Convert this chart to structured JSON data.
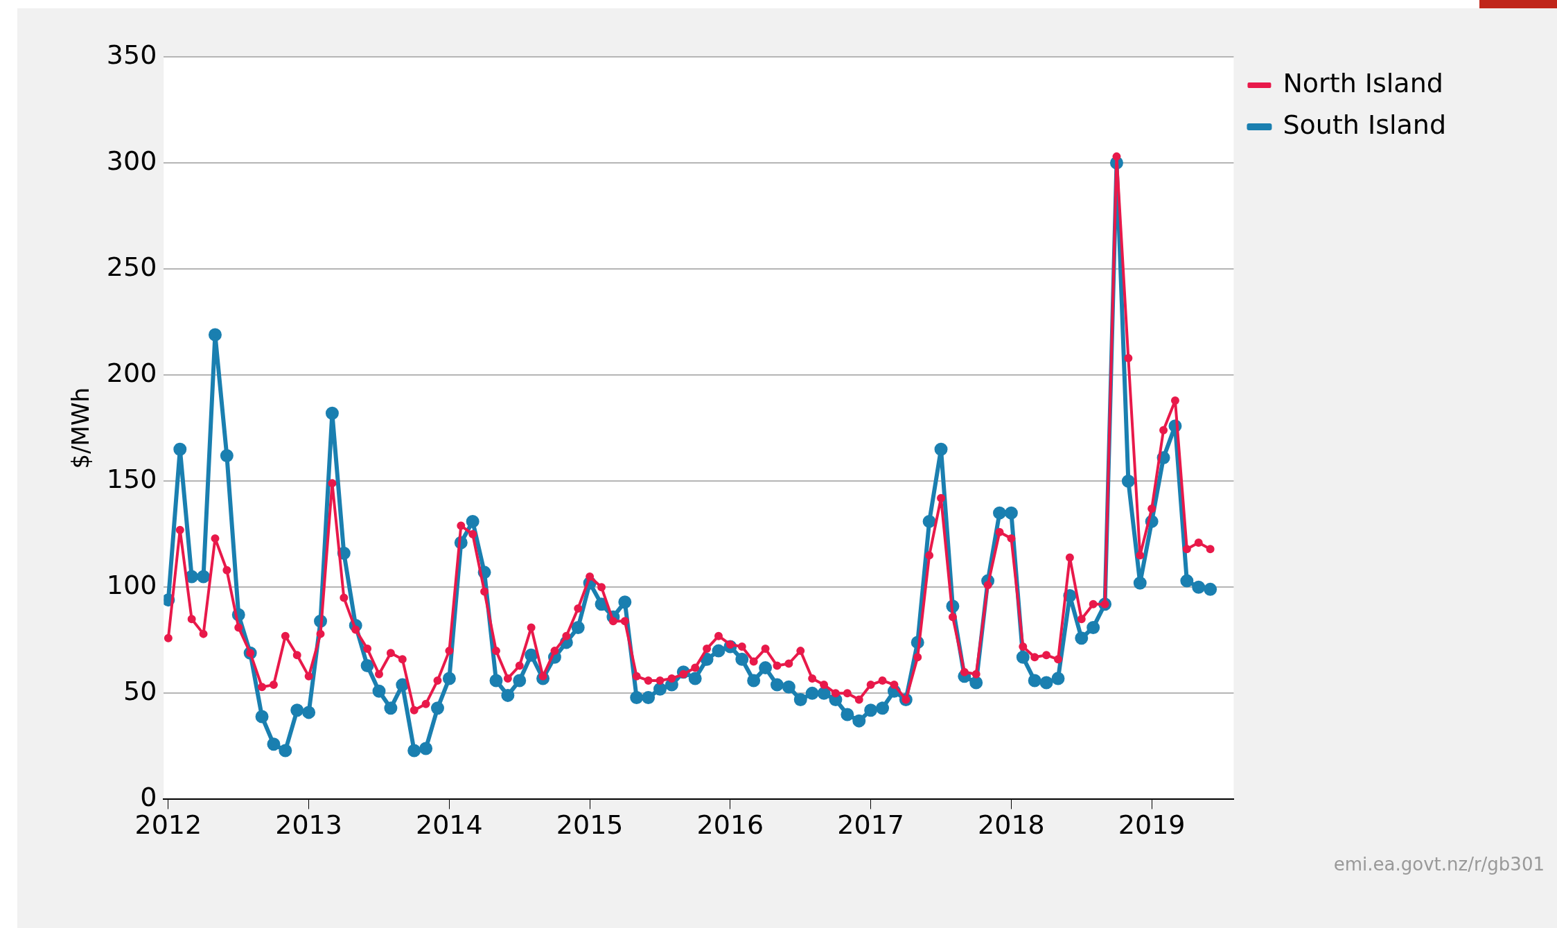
{
  "chart_data": {
    "type": "line",
    "ylabel": "$/MWh",
    "x": [
      "2012-01",
      "2012-02",
      "2012-03",
      "2012-04",
      "2012-05",
      "2012-06",
      "2012-07",
      "2012-08",
      "2012-09",
      "2012-10",
      "2012-11",
      "2012-12",
      "2013-01",
      "2013-02",
      "2013-03",
      "2013-04",
      "2013-05",
      "2013-06",
      "2013-07",
      "2013-08",
      "2013-09",
      "2013-10",
      "2013-11",
      "2013-12",
      "2014-01",
      "2014-02",
      "2014-03",
      "2014-04",
      "2014-05",
      "2014-06",
      "2014-07",
      "2014-08",
      "2014-09",
      "2014-10",
      "2014-11",
      "2014-12",
      "2015-01",
      "2015-02",
      "2015-03",
      "2015-04",
      "2015-05",
      "2015-06",
      "2015-07",
      "2015-08",
      "2015-09",
      "2015-10",
      "2015-11",
      "2015-12",
      "2016-01",
      "2016-02",
      "2016-03",
      "2016-04",
      "2016-05",
      "2016-06",
      "2016-07",
      "2016-08",
      "2016-09",
      "2016-10",
      "2016-11",
      "2016-12",
      "2017-01",
      "2017-02",
      "2017-03",
      "2017-04",
      "2017-05",
      "2017-06",
      "2017-07",
      "2017-08",
      "2017-09",
      "2017-10",
      "2017-11",
      "2017-12",
      "2018-01",
      "2018-02",
      "2018-03",
      "2018-04",
      "2018-05",
      "2018-06",
      "2018-07",
      "2018-08",
      "2018-09",
      "2018-10",
      "2018-11",
      "2018-12",
      "2019-01",
      "2019-02",
      "2019-03",
      "2019-04",
      "2019-05",
      "2019-06"
    ],
    "series": [
      {
        "name": "North Island",
        "color": "#e8194a",
        "values": [
          76,
          127,
          85,
          78,
          123,
          108,
          81,
          69,
          53,
          54,
          77,
          68,
          58,
          78,
          149,
          95,
          80,
          71,
          59,
          69,
          66,
          42,
          45,
          56,
          70,
          129,
          125,
          98,
          70,
          57,
          63,
          81,
          58,
          70,
          77,
          90,
          105,
          100,
          84,
          84,
          58,
          56,
          56,
          57,
          59,
          62,
          71,
          77,
          73,
          72,
          65,
          71,
          63,
          64,
          70,
          57,
          54,
          50,
          50,
          47,
          54,
          56,
          54,
          47,
          67,
          115,
          142,
          86,
          60,
          59,
          101,
          126,
          123,
          72,
          67,
          68,
          66,
          114,
          85,
          92,
          92,
          303,
          208,
          115,
          137,
          174,
          188,
          118,
          121,
          118
        ]
      },
      {
        "name": "South Island",
        "color": "#1a7fb0",
        "values": [
          94,
          165,
          105,
          105,
          219,
          162,
          87,
          69,
          39,
          26,
          23,
          42,
          41,
          84,
          182,
          116,
          82,
          63,
          51,
          43,
          54,
          23,
          24,
          43,
          57,
          121,
          131,
          107,
          56,
          49,
          56,
          68,
          57,
          67,
          74,
          81,
          102,
          92,
          86,
          93,
          48,
          48,
          52,
          54,
          60,
          57,
          66,
          70,
          72,
          66,
          56,
          62,
          54,
          53,
          47,
          50,
          50,
          47,
          40,
          37,
          42,
          43,
          51,
          47,
          74,
          131,
          165,
          91,
          58,
          55,
          103,
          135,
          135,
          67,
          56,
          55,
          57,
          96,
          76,
          81,
          92,
          300,
          150,
          102,
          131,
          161,
          176,
          103,
          100,
          99
        ]
      }
    ],
    "xlim": [
      "2011-12-20",
      "2019-08-01"
    ],
    "xticks": [
      "2012",
      "2013",
      "2014",
      "2015",
      "2016",
      "2017",
      "2018",
      "2019"
    ],
    "ylim": [
      0,
      350
    ],
    "yticks": [
      0,
      50,
      100,
      150,
      200,
      250,
      300,
      350
    ],
    "grid": "y",
    "legend": "top right",
    "marker": "circle",
    "line_style": "solid",
    "annotations": [
      "emi.ea.govt.nz/r/gb301"
    ]
  }
}
